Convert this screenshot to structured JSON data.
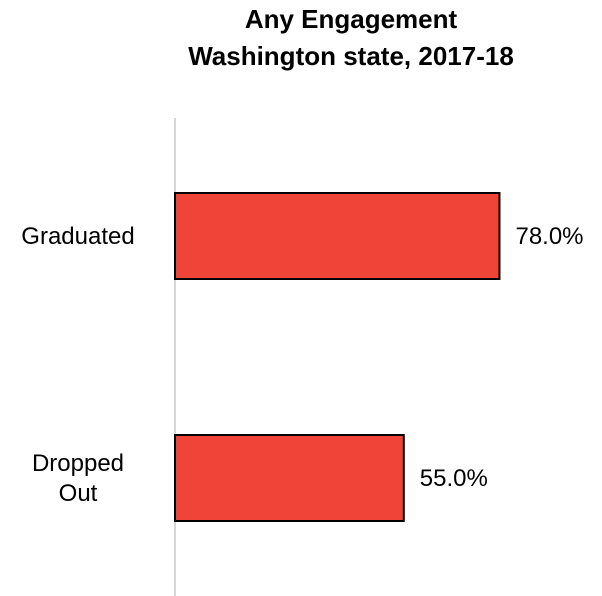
{
  "chart_data": {
    "type": "bar",
    "orientation": "horizontal",
    "title": [
      "Any Engagement",
      "Washington state, 2017-18"
    ],
    "categories": [
      [
        "Graduated"
      ],
      [
        "Dropped",
        "Out"
      ]
    ],
    "values": [
      78.0,
      55.0
    ],
    "value_labels": [
      "78.0%",
      "55.0%"
    ],
    "xlim": [
      0,
      100
    ],
    "bar_color": "#F04438",
    "bar_edge_color": "#000000",
    "axis_color": "#C8C8C8",
    "grid": false,
    "legend": "none"
  }
}
